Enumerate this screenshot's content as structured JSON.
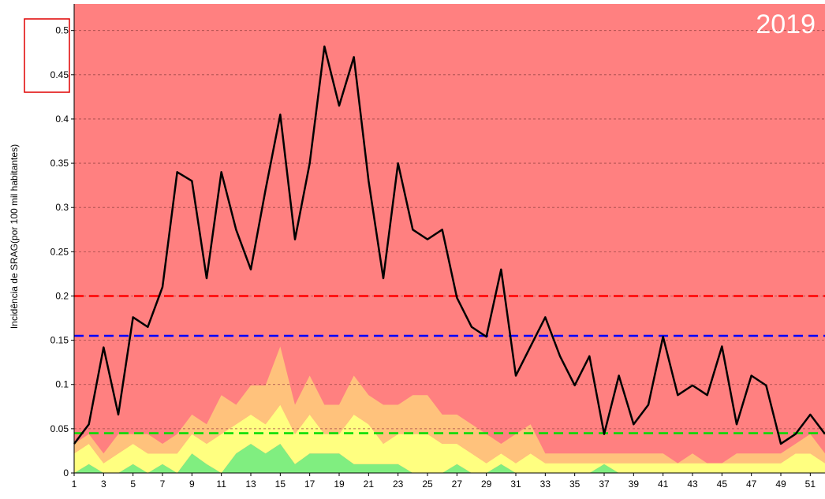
{
  "chart_data": {
    "type": "line",
    "annotation": "2019",
    "ylabel": "Incidência de SRAG(por 100 mil habitantes)",
    "x": [
      1,
      2,
      3,
      4,
      5,
      6,
      7,
      8,
      9,
      10,
      11,
      12,
      13,
      14,
      15,
      16,
      17,
      18,
      19,
      20,
      21,
      22,
      23,
      24,
      25,
      26,
      27,
      28,
      29,
      30,
      31,
      32,
      33,
      34,
      35,
      36,
      37,
      38,
      39,
      40,
      41,
      42,
      43,
      44,
      45,
      46,
      47,
      48,
      49,
      50,
      51,
      52
    ],
    "xlim": [
      1,
      52
    ],
    "xticks": [
      1,
      3,
      5,
      7,
      9,
      11,
      13,
      15,
      17,
      19,
      21,
      23,
      25,
      27,
      29,
      31,
      33,
      35,
      37,
      39,
      41,
      43,
      45,
      47,
      49,
      51
    ],
    "ylim": [
      0,
      0.53
    ],
    "yticks": [
      0,
      0.05,
      0.1,
      0.15,
      0.2,
      0.25,
      0.3,
      0.35,
      0.4,
      0.45,
      0.5
    ],
    "grid": true,
    "background_color": "#ff8080",
    "bands": [
      {
        "color": "#80ee80",
        "values": [
          0,
          0.01,
          0,
          0,
          0.01,
          0,
          0.01,
          0,
          0.022,
          0.01,
          0,
          0.022,
          0.033,
          0.022,
          0.033,
          0.01,
          0.022,
          0.022,
          0.022,
          0.01,
          0.01,
          0.01,
          0.01,
          0,
          0,
          0,
          0.01,
          0,
          0,
          0.01,
          0,
          0,
          0,
          0,
          0,
          0,
          0.01,
          0,
          0,
          0,
          0,
          0,
          0,
          0,
          0,
          0,
          0,
          0,
          0,
          0,
          0,
          0
        ]
      },
      {
        "color": "#ffff80",
        "values": [
          0.022,
          0.023,
          0.011,
          0.022,
          0.023,
          0.022,
          0.012,
          0.022,
          0.022,
          0.023,
          0.044,
          0.033,
          0.033,
          0.033,
          0.044,
          0.034,
          0.044,
          0.022,
          0.022,
          0.056,
          0.045,
          0.023,
          0.034,
          0.044,
          0.044,
          0.033,
          0.023,
          0.022,
          0.011,
          0.012,
          0.011,
          0.022,
          0.011,
          0.011,
          0.011,
          0.011,
          0.001,
          0.011,
          0.011,
          0.011,
          0.011,
          0.011,
          0.011,
          0.011,
          0.011,
          0.011,
          0.011,
          0.011,
          0.011,
          0.022,
          0.022,
          0.011
        ]
      },
      {
        "color": "#ffc27c",
        "values": [
          0.011,
          0.011,
          0.011,
          0.022,
          0.011,
          0.022,
          0.011,
          0.022,
          0.022,
          0.022,
          0.044,
          0.022,
          0.033,
          0.044,
          0.066,
          0.033,
          0.044,
          0.033,
          0.033,
          0.044,
          0.033,
          0.044,
          0.033,
          0.044,
          0.044,
          0.033,
          0.033,
          0.033,
          0.033,
          0.011,
          0.033,
          0.033,
          0.011,
          0.011,
          0.011,
          0.011,
          0.011,
          0.011,
          0.011,
          0.011,
          0.011,
          0,
          0.011,
          0,
          0,
          0.011,
          0.011,
          0.011,
          0.011,
          0.011,
          0.022,
          0.011
        ]
      }
    ],
    "thresholds": [
      {
        "value": 0.2,
        "color": "#ff0000"
      },
      {
        "value": 0.155,
        "color": "#0000ff"
      },
      {
        "value": 0.045,
        "color": "#00dd00"
      }
    ],
    "series": [
      {
        "color": "#000000",
        "values": [
          0.033,
          0.055,
          0.142,
          0.066,
          0.176,
          0.165,
          0.21,
          0.34,
          0.33,
          0.22,
          0.34,
          0.275,
          0.23,
          0.32,
          0.405,
          0.264,
          0.35,
          0.482,
          0.415,
          0.47,
          0.33,
          0.22,
          0.35,
          0.275,
          0.264,
          0.275,
          0.198,
          0.165,
          0.154,
          0.23,
          0.11,
          0.143,
          0.176,
          0.132,
          0.099,
          0.132,
          0.044,
          0.11,
          0.055,
          0.077,
          0.154,
          0.088,
          0.099,
          0.088,
          0.143,
          0.055,
          0.11,
          0.099,
          0.033,
          0.044,
          0.066,
          0.044
        ]
      }
    ]
  }
}
